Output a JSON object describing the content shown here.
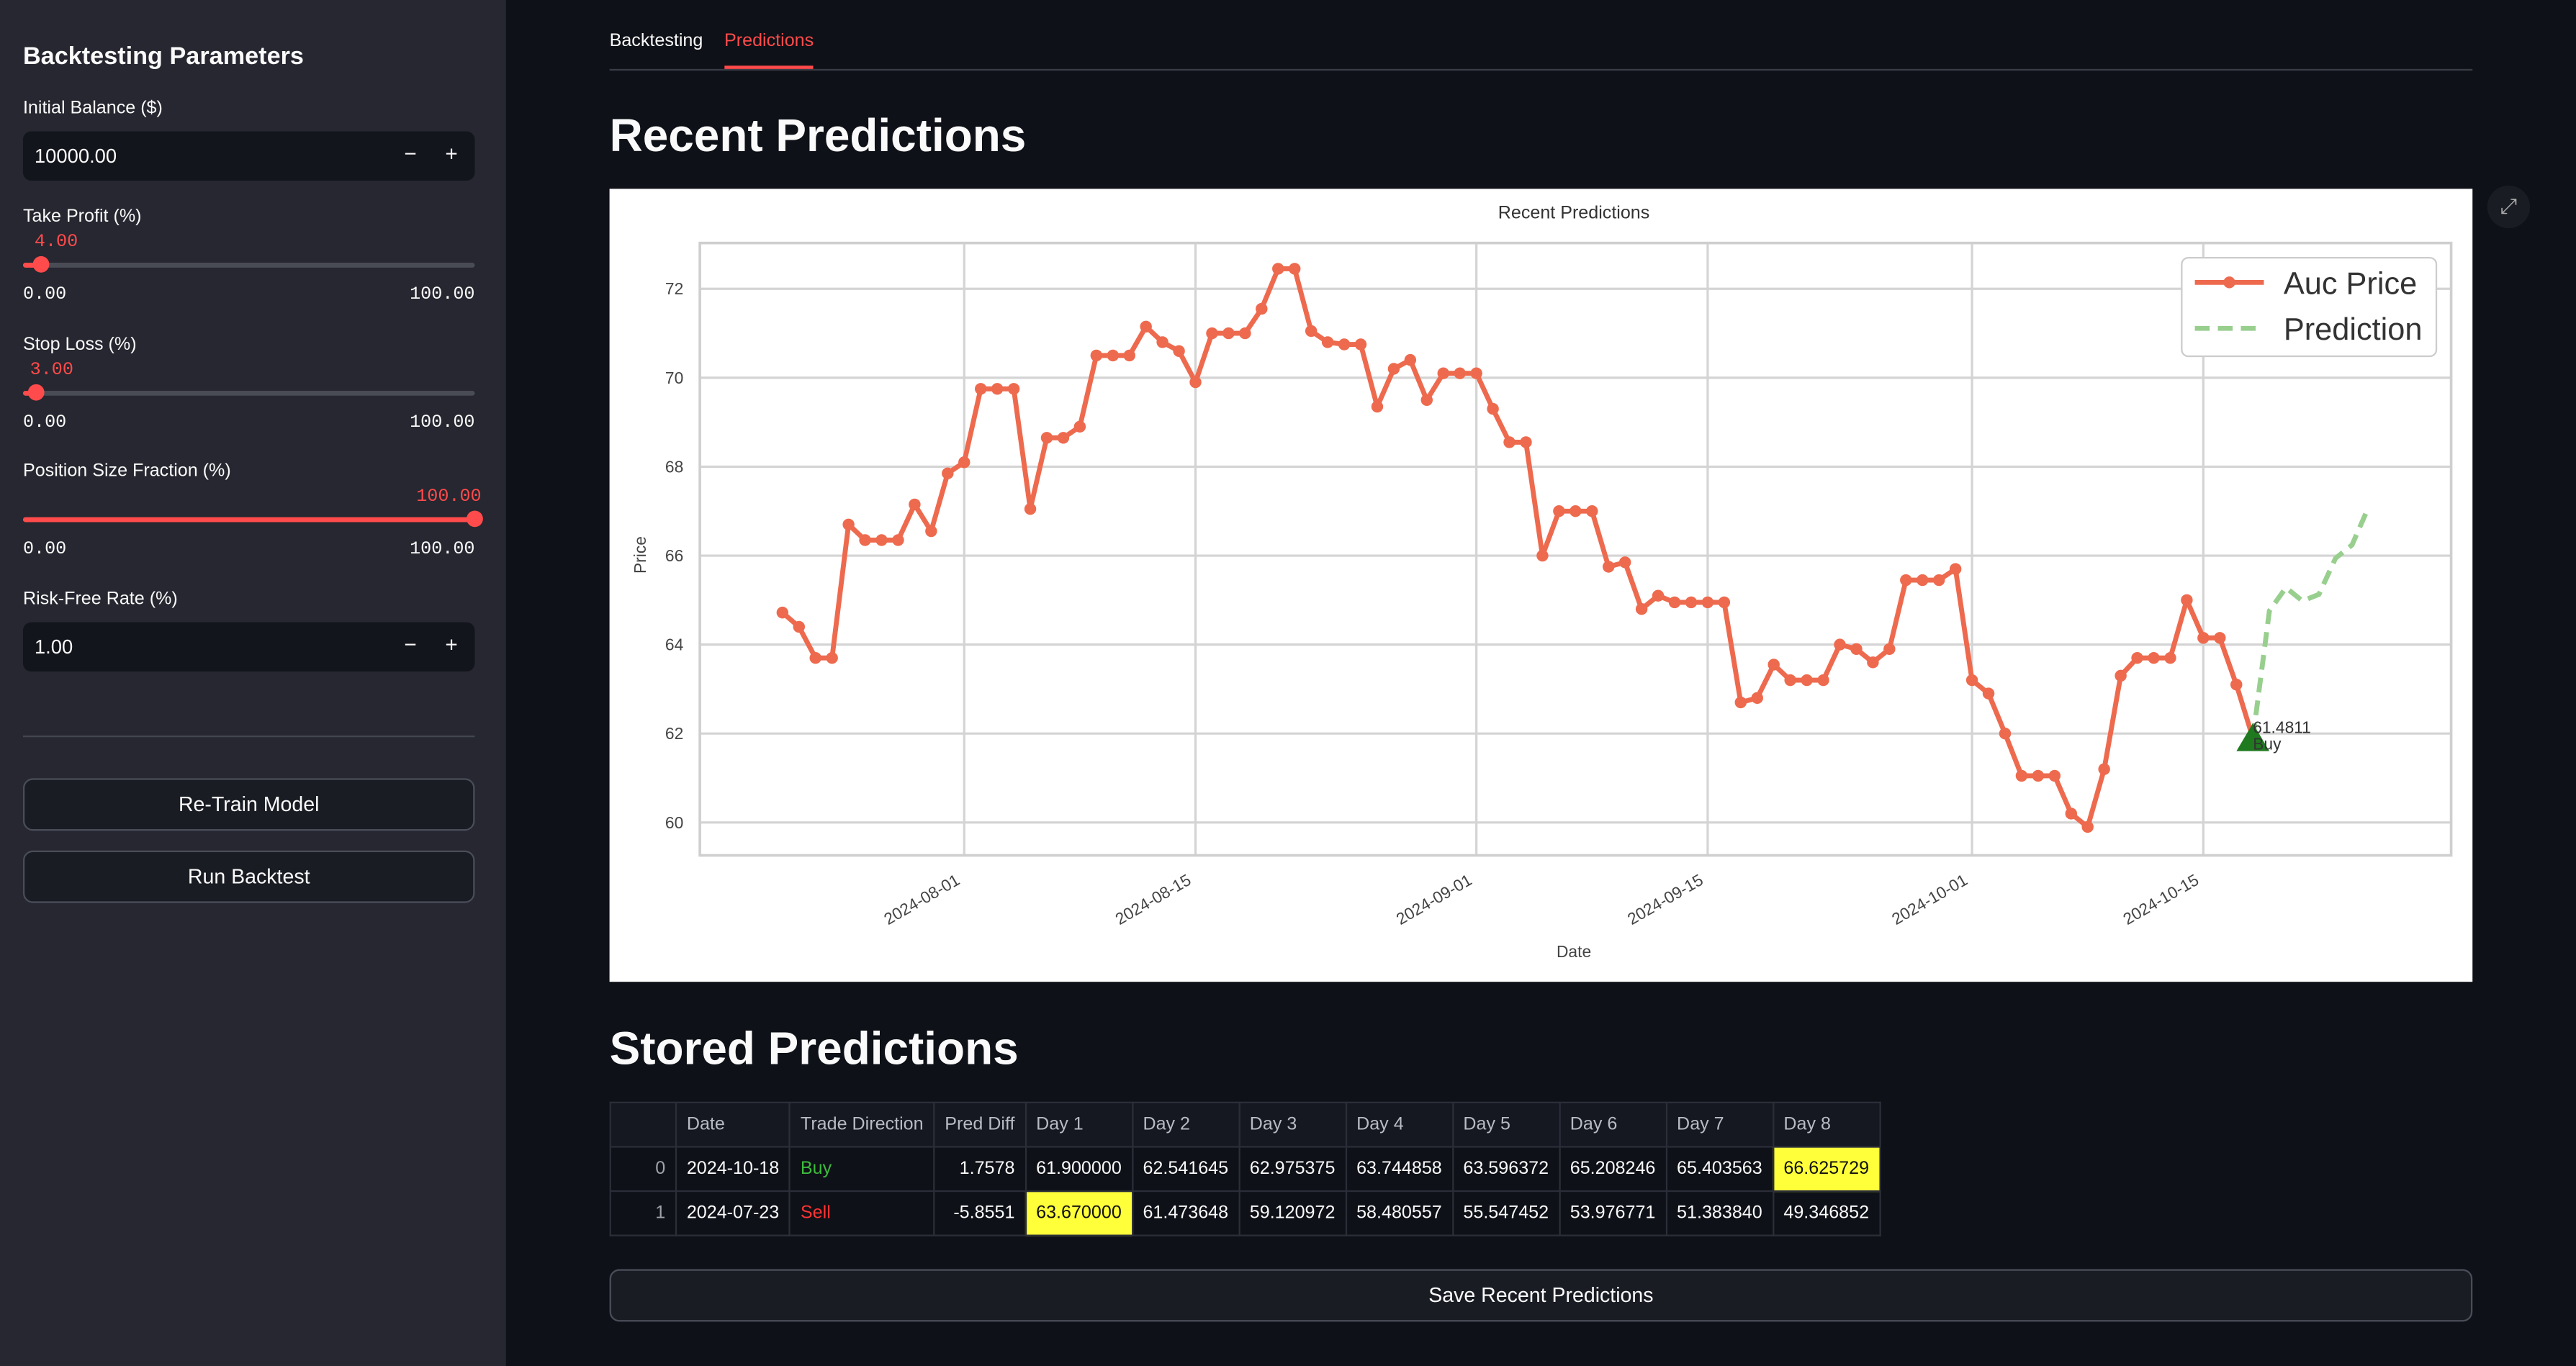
{
  "sidebar": {
    "title": "Backtesting Parameters",
    "fields": [
      {
        "label": "Initial Balance ($)",
        "type": "number",
        "value": "10000.00"
      },
      {
        "label": "Take Profit (%)",
        "type": "slider",
        "value": "4.00",
        "min": "0.00",
        "max": "100.00"
      },
      {
        "label": "Stop Loss (%)",
        "type": "slider",
        "value": "3.00",
        "min": "0.00",
        "max": "100.00"
      },
      {
        "label": "Position Size Fraction (%)",
        "type": "slider",
        "value": "100.00",
        "min": "0.00",
        "max": "100.00"
      },
      {
        "label": "Risk-Free Rate (%)",
        "type": "number",
        "value": "1.00"
      }
    ],
    "buttons": [
      "Re-Train Model",
      "Run Backtest"
    ]
  },
  "tabs": [
    "Backtesting",
    "Predictions"
  ],
  "active_tab": 1,
  "heading_1": "Recent Predictions",
  "chart_data": {
    "type": "line",
    "title": "Recent Predictions",
    "x_label": "Date",
    "y_label": "Price",
    "x": [
      "2024-07-21",
      "2024-07-22",
      "2024-07-23",
      "2024-07-24",
      "2024-07-25",
      "2024-07-26",
      "2024-07-27",
      "2024-07-28",
      "2024-07-29",
      "2024-07-30",
      "2024-07-31",
      "2024-08-01",
      "2024-08-02",
      "2024-08-03",
      "2024-08-04",
      "2024-08-05",
      "2024-08-06",
      "2024-08-07",
      "2024-08-08",
      "2024-08-09",
      "2024-08-10",
      "2024-08-11",
      "2024-08-12",
      "2024-08-13",
      "2024-08-14",
      "2024-08-15",
      "2024-08-16",
      "2024-08-17",
      "2024-08-18",
      "2024-08-19",
      "2024-08-20",
      "2024-08-21",
      "2024-08-22",
      "2024-08-23",
      "2024-08-24",
      "2024-08-25",
      "2024-08-26",
      "2024-08-27",
      "2024-08-28",
      "2024-08-29",
      "2024-08-30",
      "2024-08-31",
      "2024-09-01",
      "2024-09-02",
      "2024-09-03",
      "2024-09-04",
      "2024-09-05",
      "2024-09-06",
      "2024-09-07",
      "2024-09-08",
      "2024-09-09",
      "2024-09-10",
      "2024-09-11",
      "2024-09-12",
      "2024-09-13",
      "2024-09-14",
      "2024-09-15",
      "2024-09-16",
      "2024-09-17",
      "2024-09-18",
      "2024-09-19",
      "2024-09-20",
      "2024-09-21",
      "2024-09-22",
      "2024-09-23",
      "2024-09-24",
      "2024-09-25",
      "2024-09-26",
      "2024-09-27",
      "2024-09-28",
      "2024-09-29",
      "2024-09-30",
      "2024-10-01",
      "2024-10-02",
      "2024-10-03",
      "2024-10-04",
      "2024-10-05",
      "2024-10-06",
      "2024-10-07",
      "2024-10-08",
      "2024-10-09",
      "2024-10-10",
      "2024-10-11",
      "2024-10-12",
      "2024-10-13",
      "2024-10-14",
      "2024-10-15",
      "2024-10-16",
      "2024-10-17",
      "2024-10-18"
    ],
    "series": [
      {
        "name": "Auc Price",
        "color": "#ee6a4e",
        "style": "solid",
        "markers": true,
        "values": [
          64.72,
          64.4,
          63.7,
          63.7,
          66.7,
          66.35,
          66.35,
          66.35,
          67.15,
          66.55,
          67.85,
          68.1,
          69.75,
          69.75,
          69.75,
          67.05,
          68.65,
          68.65,
          68.9,
          70.5,
          70.5,
          70.5,
          71.15,
          70.8,
          70.6,
          69.9,
          71.0,
          71.0,
          71.0,
          71.55,
          72.45,
          72.45,
          71.05,
          70.8,
          70.75,
          70.75,
          69.35,
          70.2,
          70.4,
          69.5,
          70.1,
          70.1,
          70.1,
          69.3,
          68.55,
          68.55,
          66.0,
          67.0,
          67.0,
          67.0,
          65.75,
          65.85,
          64.8,
          65.1,
          64.95,
          64.95,
          64.95,
          64.95,
          62.7,
          62.8,
          63.55,
          63.2,
          63.2,
          63.2,
          64.0,
          63.9,
          63.6,
          63.9,
          65.45,
          65.45,
          65.45,
          65.7,
          63.2,
          62.9,
          62.0,
          61.05,
          61.05,
          61.05,
          60.2,
          59.9,
          61.2,
          63.3,
          63.7,
          63.7,
          63.7,
          65.0,
          64.15,
          64.15,
          63.1,
          61.9
        ]
      },
      {
        "name": "Prediction",
        "color": "#98cf8e",
        "style": "dashed",
        "markers": false,
        "x": [
          "2024-10-18",
          "2024-10-19",
          "2024-10-20",
          "2024-10-21",
          "2024-10-22",
          "2024-10-23",
          "2024-10-24",
          "2024-10-25"
        ],
        "values": [
          61.9,
          64.76,
          65.28,
          64.98,
          65.13,
          65.94,
          66.24,
          67.09
        ]
      }
    ],
    "annotations": [
      {
        "x": "2024-10-18",
        "y": 61.9,
        "text": "61.4811",
        "signal": "Buy",
        "color": "#1f7a1f"
      }
    ],
    "xlim": [
      "2024-07-16",
      "2024-10-30"
    ],
    "xticks": [
      "2024-08-01",
      "2024-08-15",
      "2024-09-01",
      "2024-09-15",
      "2024-10-01",
      "2024-10-15"
    ],
    "ylim": [
      59.26,
      73.03
    ],
    "yticks": [
      60,
      62,
      64,
      66,
      68,
      70,
      72
    ],
    "grid": true,
    "legend": "upper right"
  },
  "heading_2": "Stored Predictions",
  "table": {
    "columns": [
      null,
      "Date",
      "Trade Direction",
      "Pred Diff",
      "Day 1",
      "Day 2",
      "Day 3",
      "Day 4",
      "Day 5",
      "Day 6",
      "Day 7",
      "Day 8"
    ],
    "rows": [
      [
        "0",
        "2024-10-18",
        "Buy",
        "1.7578",
        "61.900000",
        "62.541645",
        "62.975375",
        "63.744858",
        "63.596372",
        "65.208246",
        "65.403563",
        "66.625729"
      ],
      [
        "1",
        "2024-07-23",
        "Sell",
        "-5.8551",
        "63.670000",
        "61.473648",
        "59.120972",
        "58.480557",
        "55.547452",
        "53.976771",
        "51.383840",
        "49.346852"
      ]
    ],
    "direction_colors": [
      "#3dbb3d",
      "#ff3333"
    ],
    "highlight_max": true,
    "highlight_color": "#ffff3a"
  },
  "save_button": "Save Recent Predictions"
}
